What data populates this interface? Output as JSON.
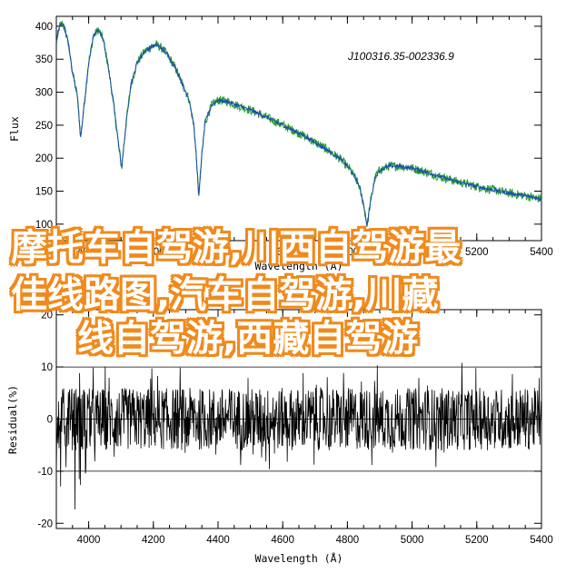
{
  "chart_data": [
    {
      "type": "line",
      "title": "",
      "annotation": "J100316.35-002336.9",
      "xlabel": "Wavelength (Å)",
      "ylabel": "Flux",
      "xlim": [
        3900,
        5400
      ],
      "ylim": [
        75,
        415
      ],
      "xticks": [
        4000,
        4200,
        4400,
        4600,
        4800,
        5000,
        5200,
        5400
      ],
      "yticks": [
        100,
        150,
        200,
        250,
        300,
        350,
        400
      ],
      "grid": false,
      "series_colors": [
        "#1a4fb0",
        "#2aa02a"
      ],
      "series": [
        {
          "x": [
            3900,
            3910,
            3920,
            3935,
            3950,
            3965,
            3975,
            3985,
            4000,
            4015,
            4030,
            4045,
            4060,
            4075,
            4090,
            4102,
            4115,
            4130,
            4150,
            4170,
            4190,
            4210,
            4230,
            4250,
            4270,
            4290,
            4310,
            4325,
            4334,
            4340,
            4350,
            4360,
            4380,
            4400,
            4430,
            4460,
            4500,
            4550,
            4600,
            4650,
            4700,
            4740,
            4780,
            4810,
            4835,
            4850,
            4861,
            4870,
            4885,
            4900,
            4930,
            4960,
            5000,
            5050,
            5100,
            5150,
            5200,
            5250,
            5300,
            5350,
            5400
          ],
          "values": [
            375,
            400,
            405,
            380,
            330,
            295,
            232,
            275,
            345,
            385,
            395,
            380,
            340,
            290,
            230,
            185,
            250,
            310,
            345,
            360,
            368,
            372,
            365,
            352,
            335,
            312,
            290,
            250,
            195,
            140,
            205,
            255,
            280,
            288,
            286,
            280,
            273,
            262,
            250,
            238,
            224,
            212,
            198,
            182,
            160,
            130,
            97,
            130,
            170,
            182,
            188,
            188,
            185,
            178,
            170,
            163,
            157,
            152,
            147,
            143,
            138
          ]
        }
      ]
    },
    {
      "type": "line",
      "title": "",
      "xlabel": "Wavelength (Å)",
      "ylabel": "Residual(%)",
      "xlim": [
        3900,
        5400
      ],
      "ylim": [
        -21,
        21
      ],
      "xticks": [
        4000,
        4200,
        4400,
        4600,
        4800,
        5000,
        5200,
        5400
      ],
      "yticks": [
        -20,
        -10,
        0,
        10,
        20
      ],
      "reference_lines": [
        10,
        0,
        -10
      ],
      "grid": false,
      "series_colors": [
        "#000000"
      ],
      "noise_amplitude_percent": 6
    }
  ],
  "overlay": {
    "line1": "摩托车自驾游,川西自驾游最",
    "line2": "佳线路图,汽车自驾游,川藏",
    "line3": "线自驾游,西藏自驾游",
    "color": "#f08a1c"
  }
}
